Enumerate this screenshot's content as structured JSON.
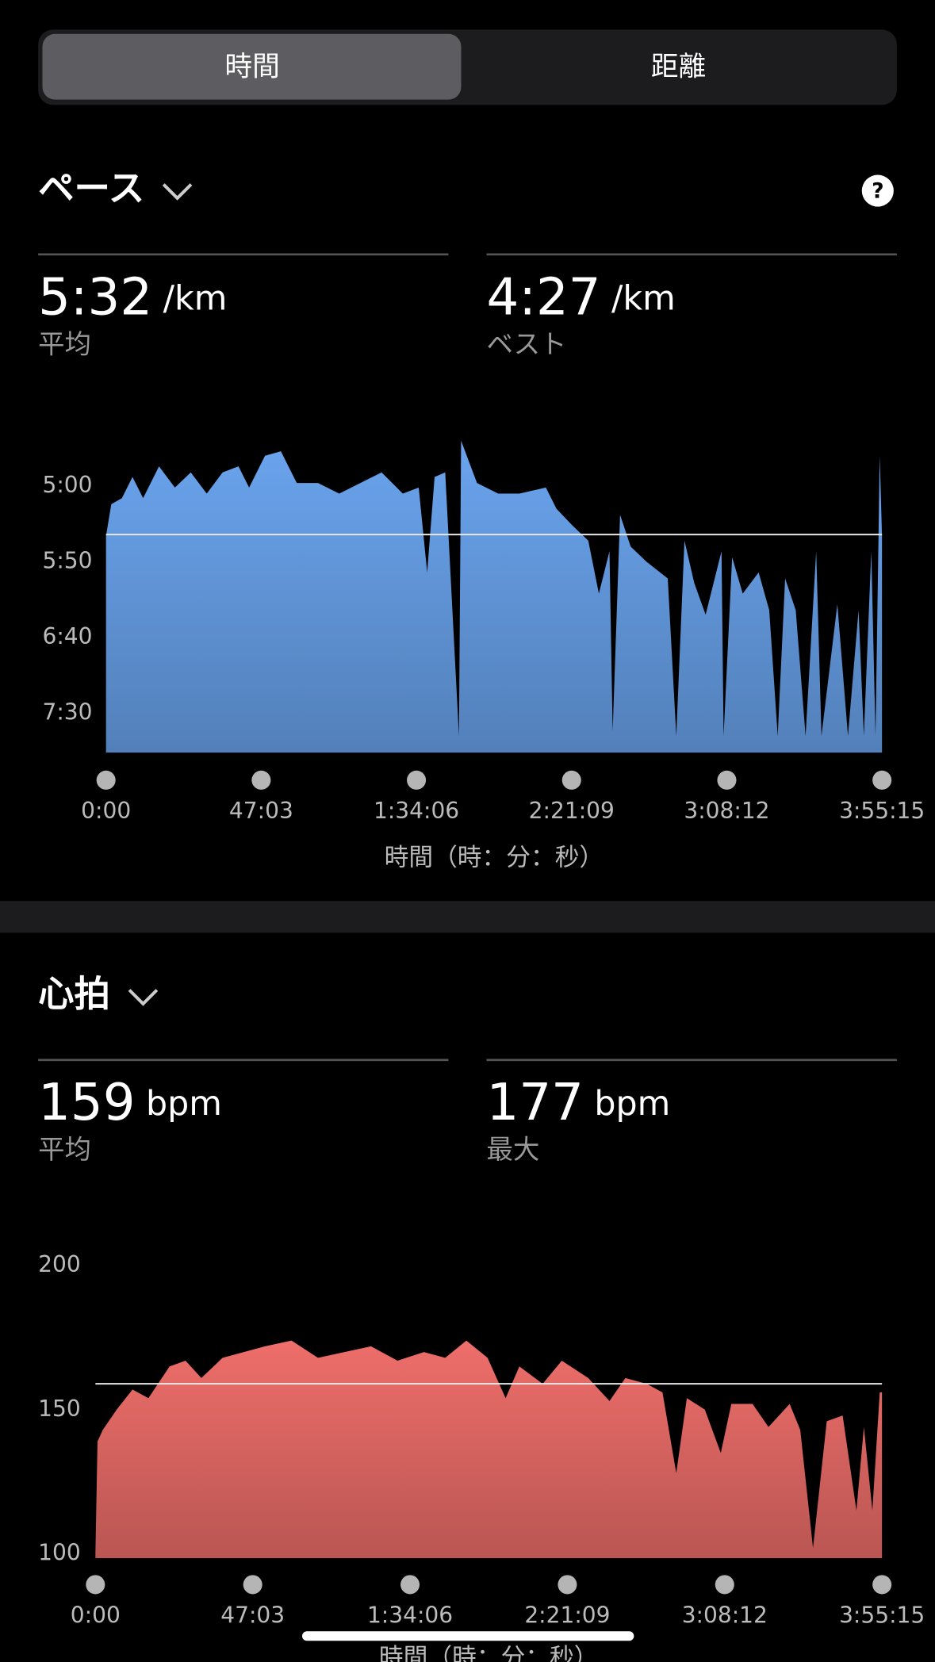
{
  "tabs": {
    "items": [
      "時間",
      "距離"
    ],
    "selected": 0
  },
  "sections": [
    {
      "title": "ペース",
      "help": "?",
      "stats": [
        {
          "value": "5:32",
          "unit": "/km",
          "label": "平均"
        },
        {
          "value": "4:27",
          "unit": "/km",
          "label": "ベスト"
        }
      ]
    },
    {
      "title": "心拍",
      "stats": [
        {
          "value": 159,
          "unit": "bpm",
          "label": "平均"
        },
        {
          "value": 177,
          "unit": "bpm",
          "label": "最大"
        }
      ]
    }
  ],
  "chart_data": [
    {
      "type": "area",
      "color": "#6aa4ee",
      "average": 332,
      "x_label": "時間（時：分：秒）",
      "xlim": [
        0,
        14115
      ],
      "xticks": [
        {
          "value": 0,
          "label": "0:00"
        },
        {
          "value": 2823,
          "label": "47:03"
        },
        {
          "value": 5646,
          "label": "1:34:06"
        },
        {
          "value": 8469,
          "label": "2:21:09"
        },
        {
          "value": 11292,
          "label": "3:08:12"
        },
        {
          "value": 14115,
          "label": "3:55:15"
        }
      ],
      "ylim": [
        476,
        266
      ],
      "yticks": [
        {
          "value": 300,
          "label": "5:00"
        },
        {
          "value": 350,
          "label": "5:50"
        },
        {
          "value": 400,
          "label": "6:40"
        },
        {
          "value": 450,
          "label": "7:30"
        }
      ],
      "x": [
        0,
        96,
        289,
        482,
        675,
        964,
        1253,
        1542,
        1832,
        2121,
        2410,
        2603,
        2892,
        3181,
        3470,
        3856,
        4242,
        4627,
        5013,
        5398,
        5688,
        5842,
        5977,
        6170,
        6420,
        6459,
        6748,
        7134,
        7519,
        8001,
        8194,
        8483,
        8772,
        8965,
        9158,
        9216,
        9351,
        9544,
        9833,
        10218,
        10373,
        10522,
        10700,
        10907,
        11196,
        11234,
        11389,
        11582,
        11871,
        12064,
        12218,
        12353,
        12546,
        12725,
        12918,
        13014,
        13303,
        13496,
        13689,
        13785,
        13920,
        13997,
        14074,
        14115
      ],
      "values": [
        333,
        312,
        308,
        294,
        308,
        287,
        301,
        291,
        305,
        291,
        287,
        301,
        280,
        277,
        298,
        298,
        305,
        298,
        291,
        305,
        301,
        357,
        294,
        291,
        465,
        270,
        298,
        305,
        305,
        301,
        315,
        326,
        336,
        371,
        343,
        462,
        319,
        340,
        350,
        361,
        465,
        336,
        364,
        385,
        343,
        465,
        347,
        371,
        357,
        382,
        465,
        361,
        382,
        465,
        343,
        465,
        378,
        465,
        382,
        465,
        343,
        465,
        280,
        333
      ]
    },
    {
      "type": "area",
      "color": "#ee6e6a",
      "average": 159,
      "x_label": "時間（時：分：秒）",
      "xlim": [
        0,
        14115
      ],
      "xticks": [
        {
          "value": 0,
          "label": "0:00"
        },
        {
          "value": 2823,
          "label": "47:03"
        },
        {
          "value": 5646,
          "label": "1:34:06"
        },
        {
          "value": 8469,
          "label": "2:21:09"
        },
        {
          "value": 11292,
          "label": "3:08:12"
        },
        {
          "value": 14115,
          "label": "3:55:15"
        }
      ],
      "ylim": [
        98.5,
        200
      ],
      "yticks": [
        100,
        150,
        200
      ],
      "x": [
        0,
        38,
        133,
        381,
        666,
        951,
        1331,
        1617,
        1902,
        2282,
        2663,
        3043,
        3519,
        3994,
        4470,
        4945,
        5421,
        5896,
        6277,
        6657,
        7037,
        7361,
        7608,
        8026,
        8369,
        8844,
        9225,
        9510,
        9890,
        10176,
        10423,
        10613,
        10937,
        11222,
        11412,
        11792,
        12078,
        12458,
        12648,
        12877,
        13124,
        13409,
        13656,
        13790,
        13942,
        14075,
        14115
      ],
      "values": [
        100,
        139,
        143,
        150,
        157,
        154,
        165,
        167,
        161,
        168,
        170,
        172,
        174,
        168,
        170,
        172,
        167,
        170,
        168,
        174,
        168,
        154,
        165,
        159,
        167,
        161,
        153,
        161,
        159,
        156,
        128,
        154,
        150,
        135,
        152,
        152,
        144,
        152,
        143,
        102,
        146,
        148,
        115,
        144,
        115,
        156,
        156
      ]
    }
  ]
}
